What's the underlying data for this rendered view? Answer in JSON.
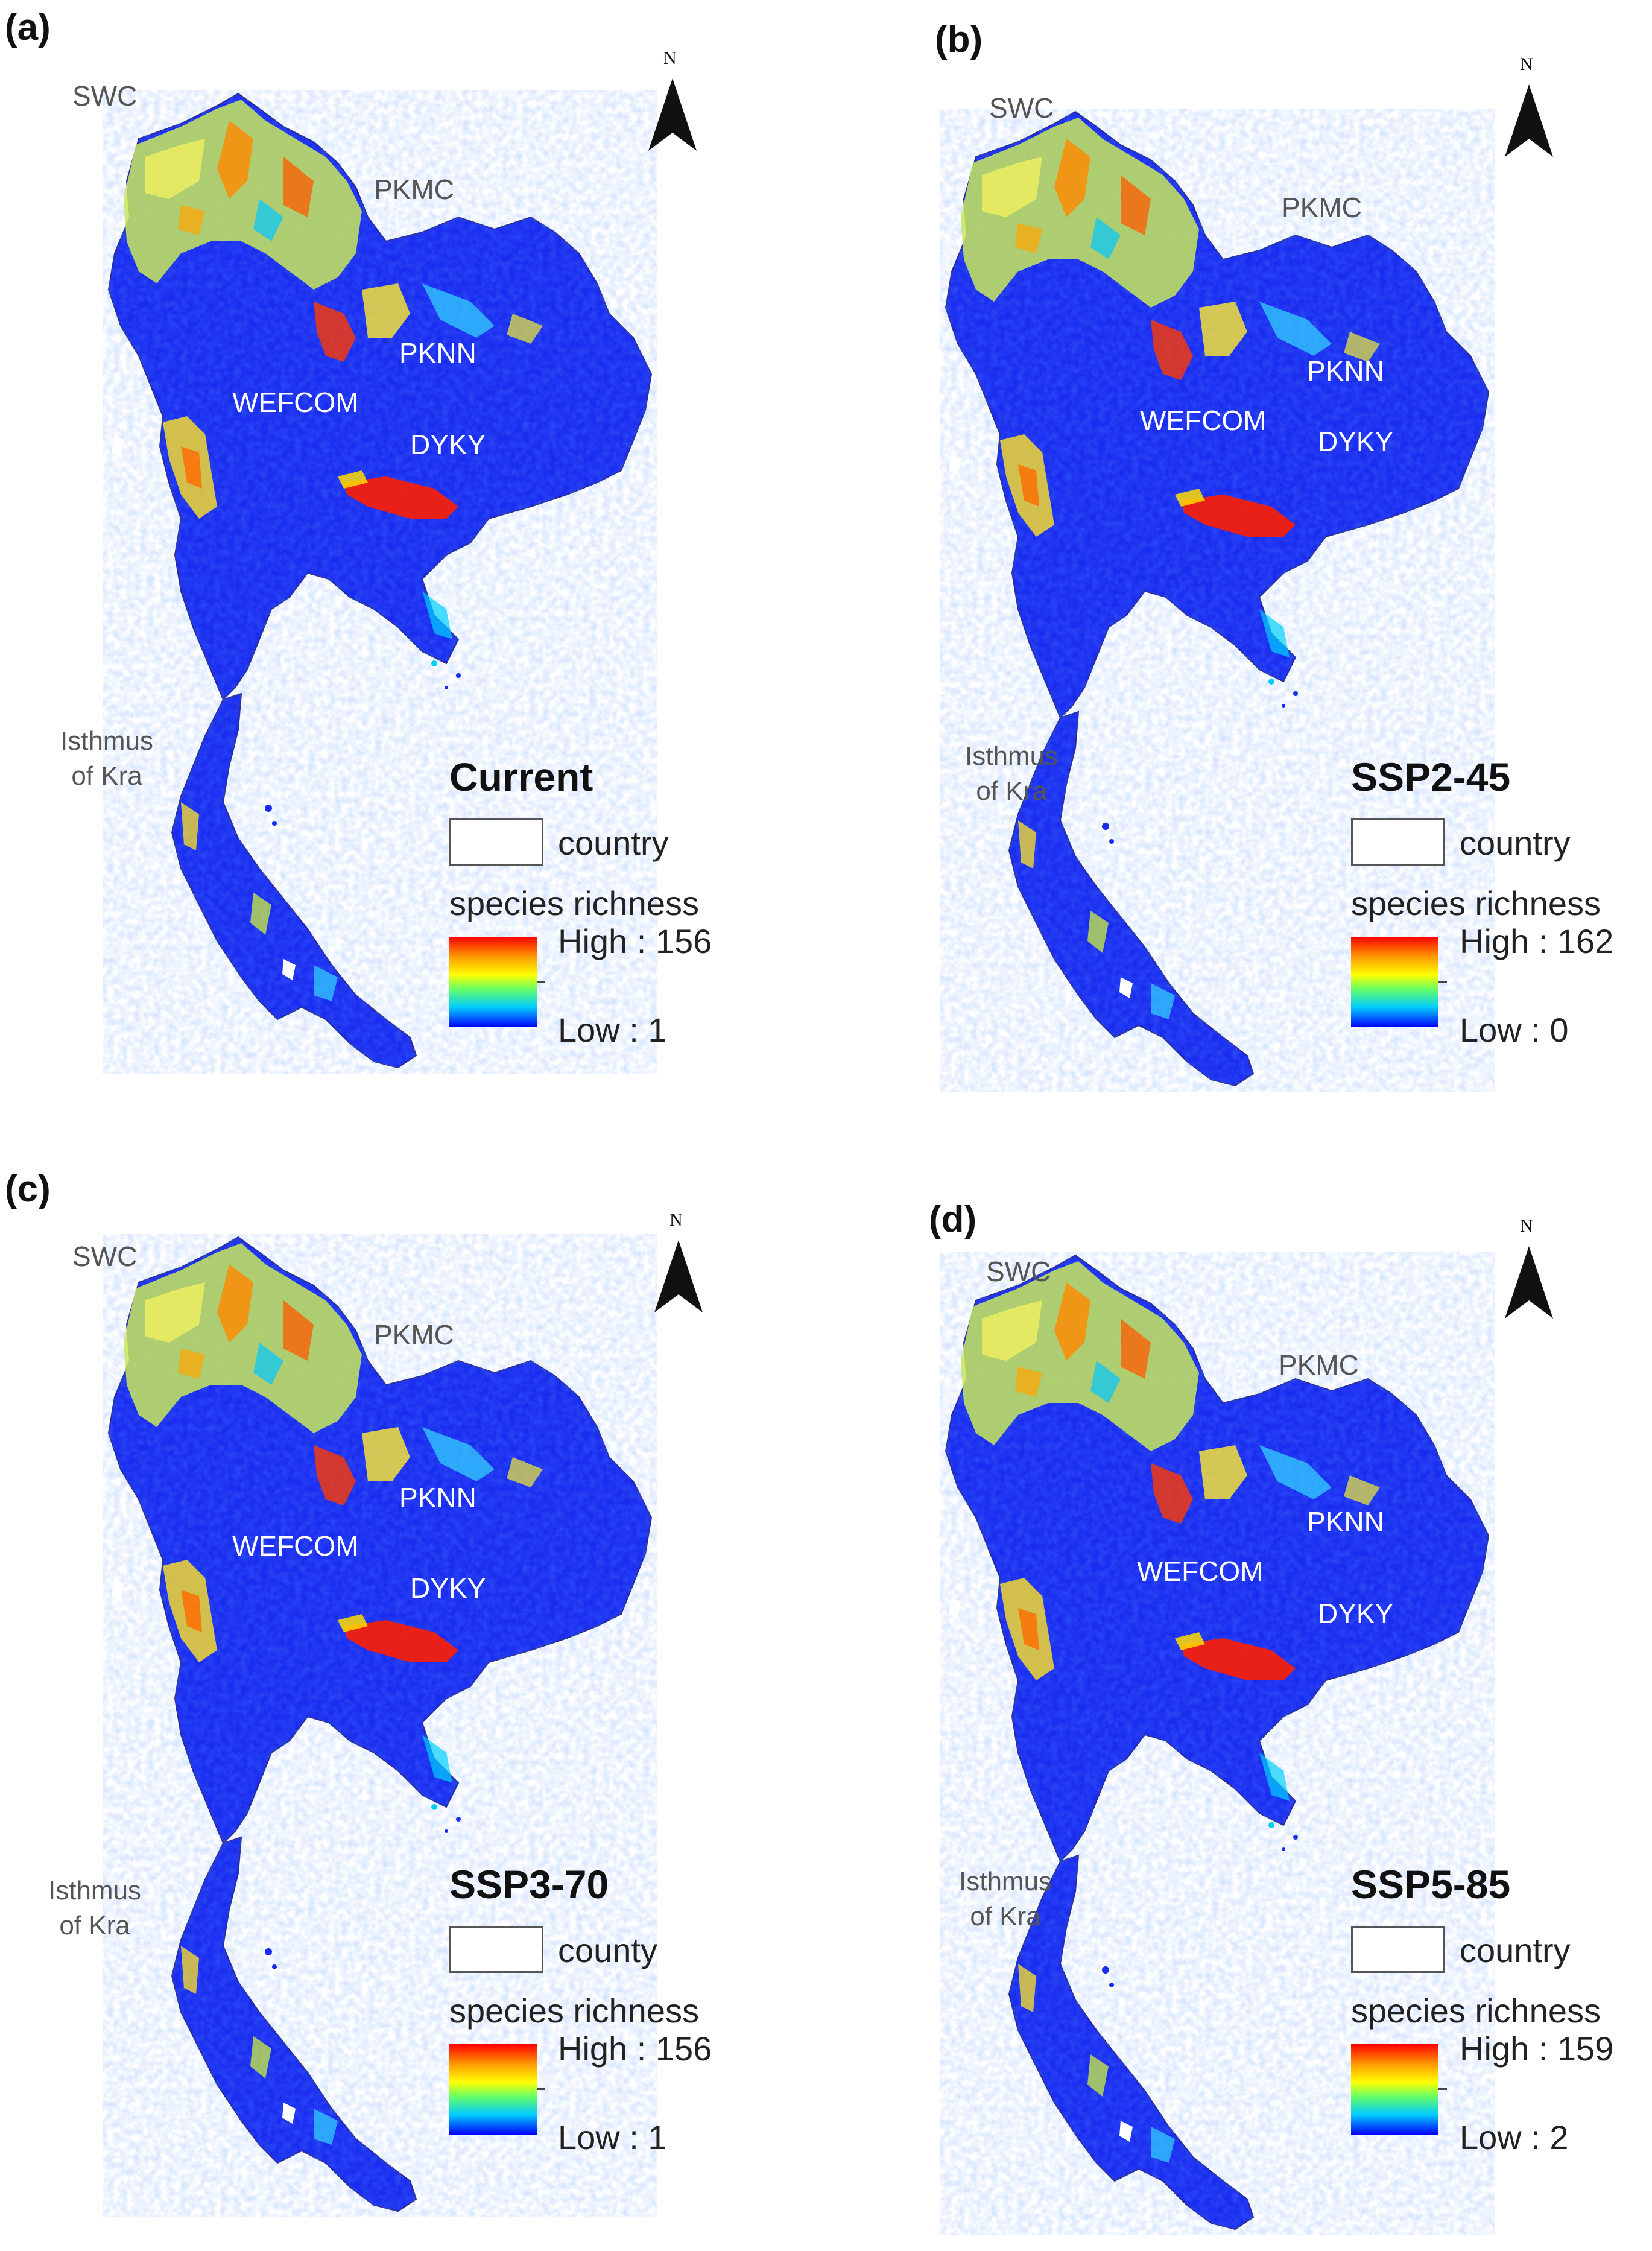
{
  "panels": [
    {
      "letter": "(a)",
      "scenario": "Current",
      "boundary_label": "country",
      "legend_label": "species richness",
      "high": "High : 156",
      "low": "Low : 1"
    },
    {
      "letter": "(b)",
      "scenario": "SSP2-45",
      "boundary_label": "country",
      "legend_label": "species richness",
      "high": "High : 162",
      "low": "Low : 0"
    },
    {
      "letter": "(c)",
      "scenario": "SSP3-70",
      "boundary_label": "county",
      "legend_label": "species richness",
      "high": "High : 156",
      "low": "Low : 1"
    },
    {
      "letter": "(d)",
      "scenario": "SSP5-85",
      "boundary_label": "country",
      "legend_label": "species richness",
      "high": "High : 159",
      "low": "Low : 2"
    }
  ],
  "regions": {
    "swc": "SWC",
    "pkmc": "PKMC",
    "pknn": "PKNN",
    "wefcom": "WEFCOM",
    "dyky": "DYKY",
    "isthmus_line1": "Isthmus",
    "isthmus_line2": "of Kra"
  },
  "north_label": "N",
  "colors": {
    "low": "#0000ff",
    "mid_low": "#00ccff",
    "mid": "#ffff00",
    "mid_high": "#ff9900",
    "high": "#ff0000",
    "country_fill": "#1a2cf0"
  }
}
